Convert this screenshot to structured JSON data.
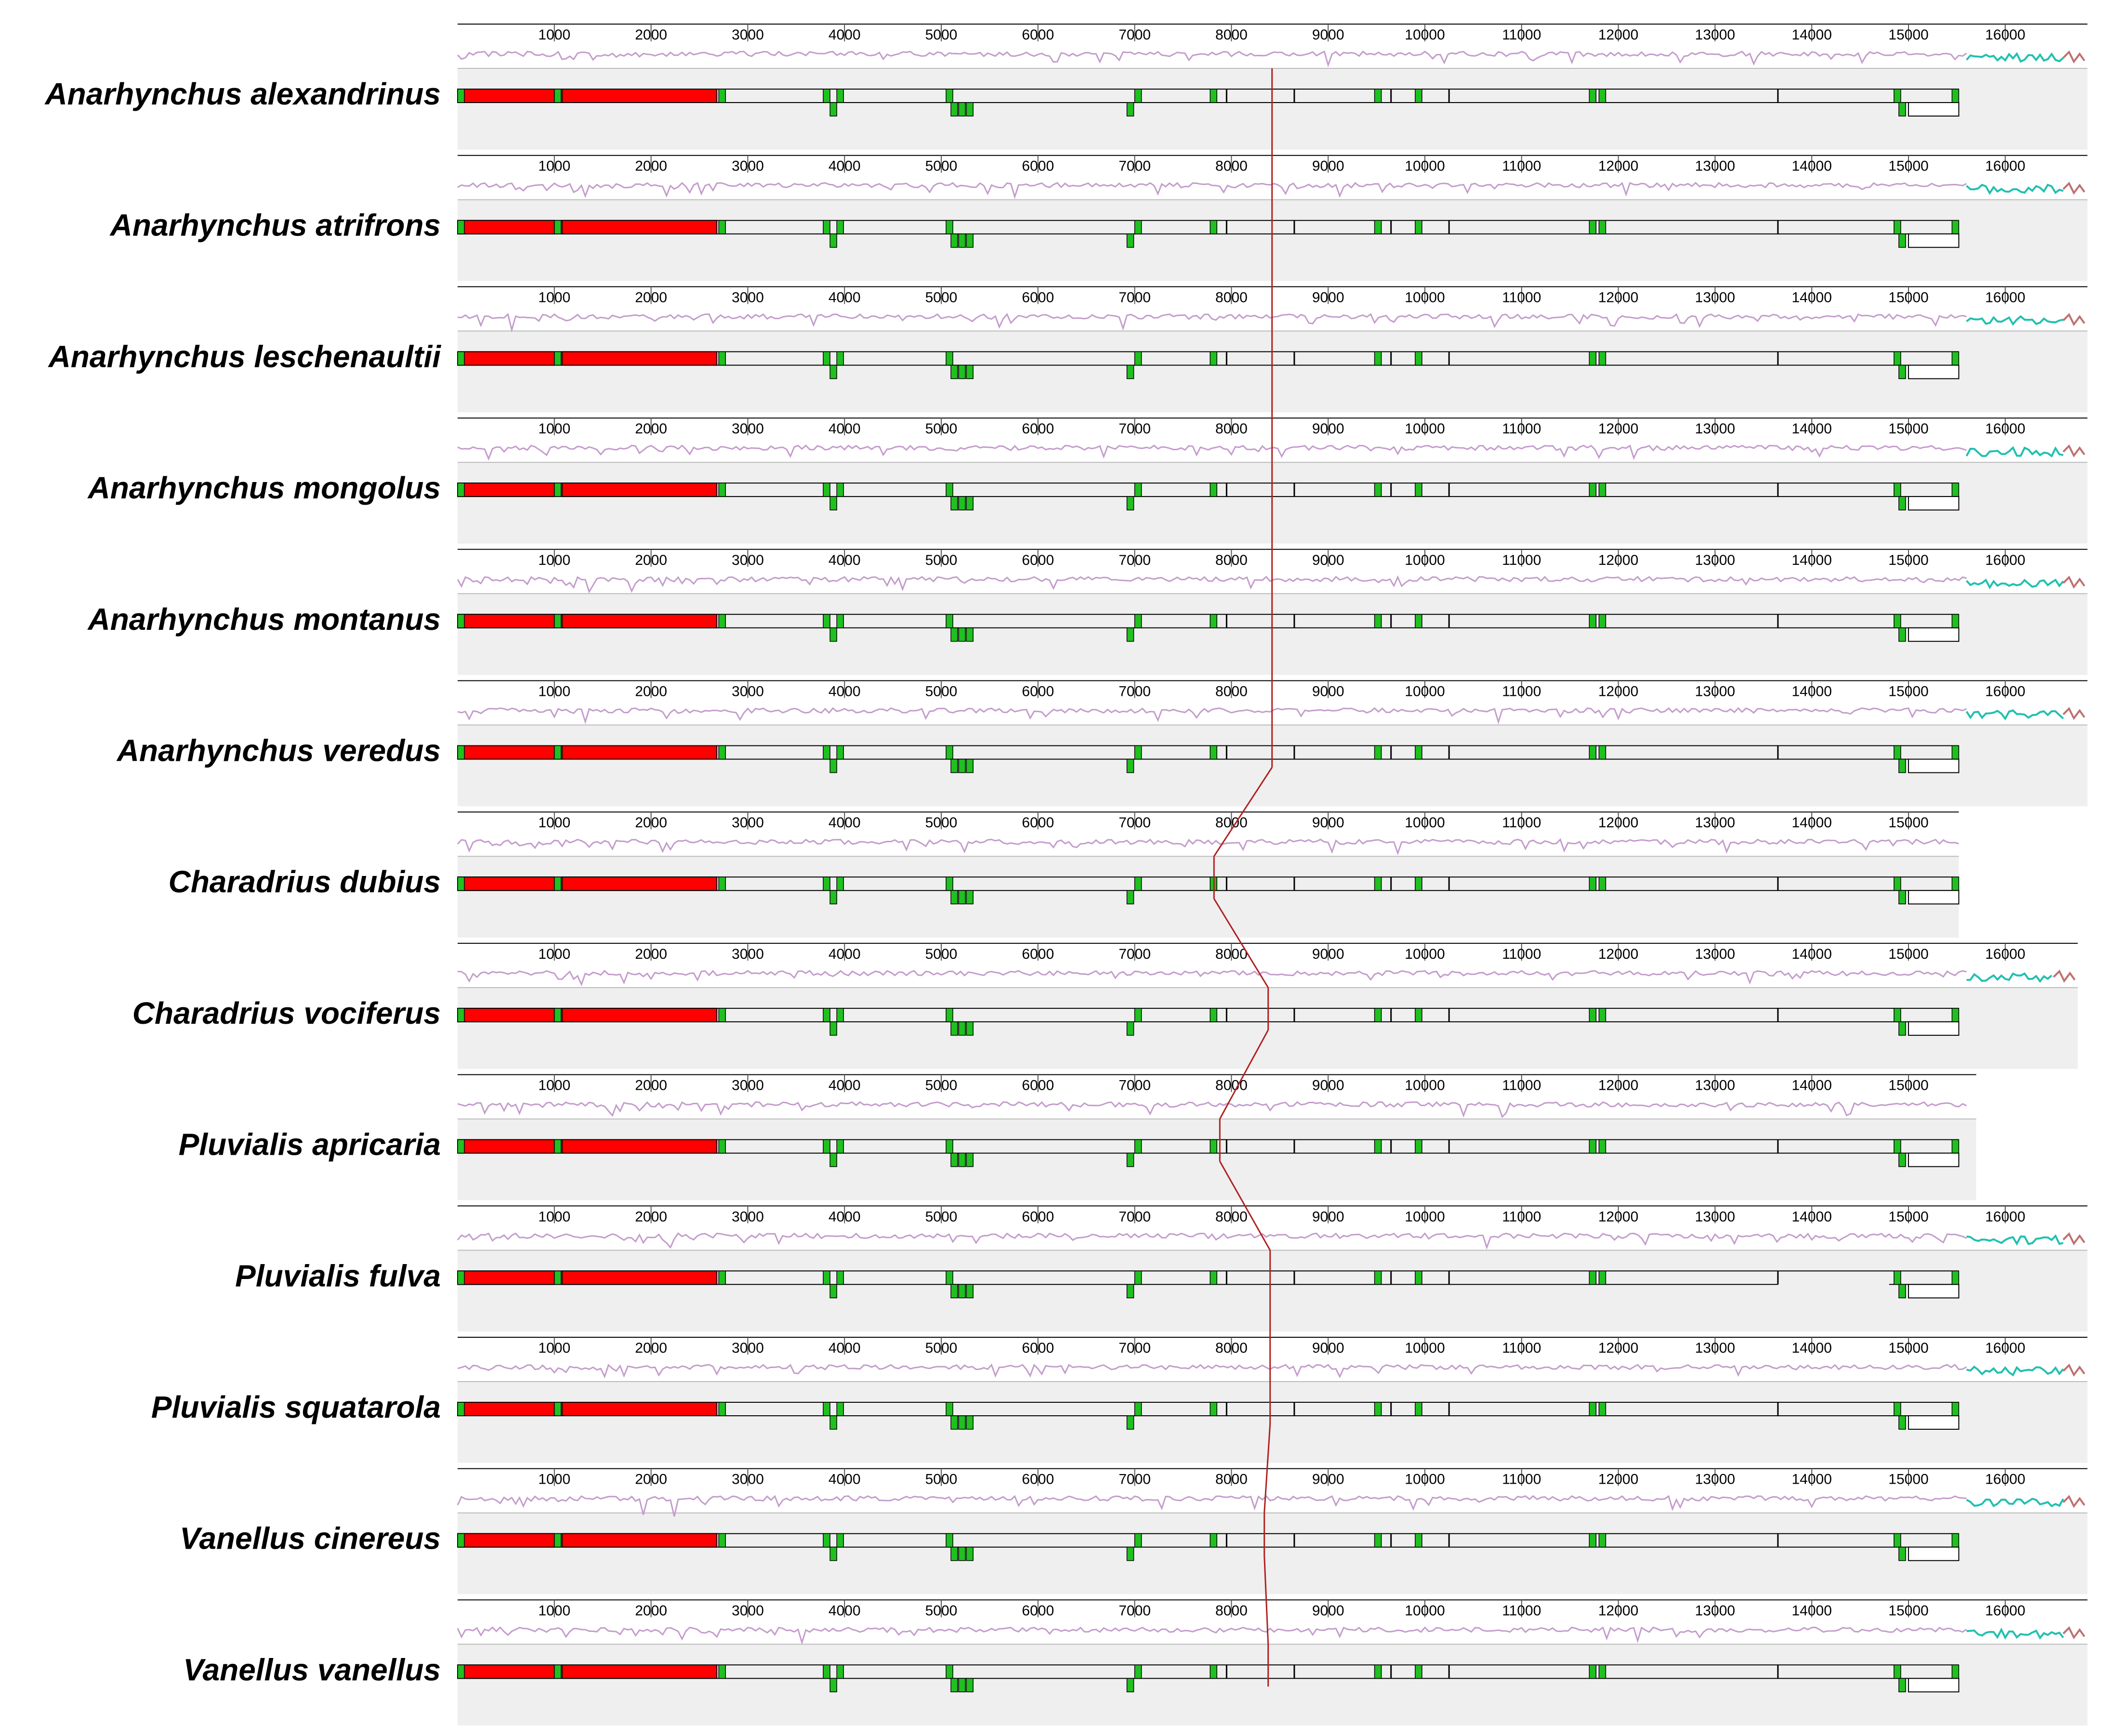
{
  "figure": {
    "title": "",
    "axis": {
      "min": 0,
      "max": 16900,
      "ticks": [
        1000,
        2000,
        3000,
        4000,
        5000,
        6000,
        7000,
        8000,
        9000,
        10000,
        11000,
        12000,
        13000,
        14000,
        15000,
        16000
      ],
      "tick_labels": [
        "1000",
        "2000",
        "3000",
        "4000",
        "5000",
        "6000",
        "7000",
        "8000",
        "9000",
        "10000",
        "11000",
        "12000",
        "13000",
        "14000",
        "15000",
        "16000"
      ]
    },
    "colors": {
      "similarity_profile": "#c49ccc",
      "control_region_profile": "#20c0b0",
      "rRNA_block": "#ff0000",
      "tRNA_block": "#20c020",
      "gene_outline": "#000000",
      "panel_background": "#efefef",
      "lcb_connector": "#b02020"
    },
    "features": {
      "rRNA": [
        {
          "start": 0,
          "end": 1000
        },
        {
          "start": 1080,
          "end": 2680
        }
      ],
      "tRNA_upper": [
        0,
        1000,
        2700,
        3780,
        3920,
        5050,
        7000,
        7780,
        9480,
        9900,
        11700,
        11800,
        14850,
        15450
      ],
      "tRNA_lower": [
        3850,
        5100,
        5180,
        5260,
        6920,
        14900
      ],
      "marks": [
        7950,
        8650,
        9650,
        10250,
        13650
      ],
      "last_box": {
        "start": 15000,
        "end": 15520
      }
    }
  },
  "species": [
    {
      "name": "Anarhynchus alexandrinus",
      "length": 16850,
      "breakpoint": 8420,
      "gap": null
    },
    {
      "name": "Anarhynchus atrifrons",
      "length": 16850,
      "breakpoint": 8420,
      "gap": null
    },
    {
      "name": "Anarhynchus leschenaultii",
      "length": 16850,
      "breakpoint": 8420,
      "gap": null
    },
    {
      "name": "Anarhynchus mongolus",
      "length": 16850,
      "breakpoint": 8420,
      "gap": null
    },
    {
      "name": "Anarhynchus montanus",
      "length": 16850,
      "breakpoint": 8420,
      "gap": null
    },
    {
      "name": "Anarhynchus veredus",
      "length": 16850,
      "breakpoint": 8420,
      "gap": null
    },
    {
      "name": "Charadrius dubius",
      "length": 15520,
      "breakpoint": 7820,
      "gap": null
    },
    {
      "name": "Charadrius vociferus",
      "length": 16750,
      "breakpoint": 8380,
      "gap": null
    },
    {
      "name": "Pluvialis apricaria",
      "length": 15700,
      "breakpoint": 7880,
      "gap": null
    },
    {
      "name": "Pluvialis fulva",
      "length": 16850,
      "breakpoint": 8400,
      "gap": [
        13650,
        14800
      ]
    },
    {
      "name": "Pluvialis squatarola",
      "length": 16850,
      "breakpoint": 8400,
      "gap": null
    },
    {
      "name": "Vanellus cinereus",
      "length": 16850,
      "breakpoint": 8340,
      "gap": null
    },
    {
      "name": "Vanellus vanellus",
      "length": 16850,
      "breakpoint": 8380,
      "gap": null
    }
  ]
}
